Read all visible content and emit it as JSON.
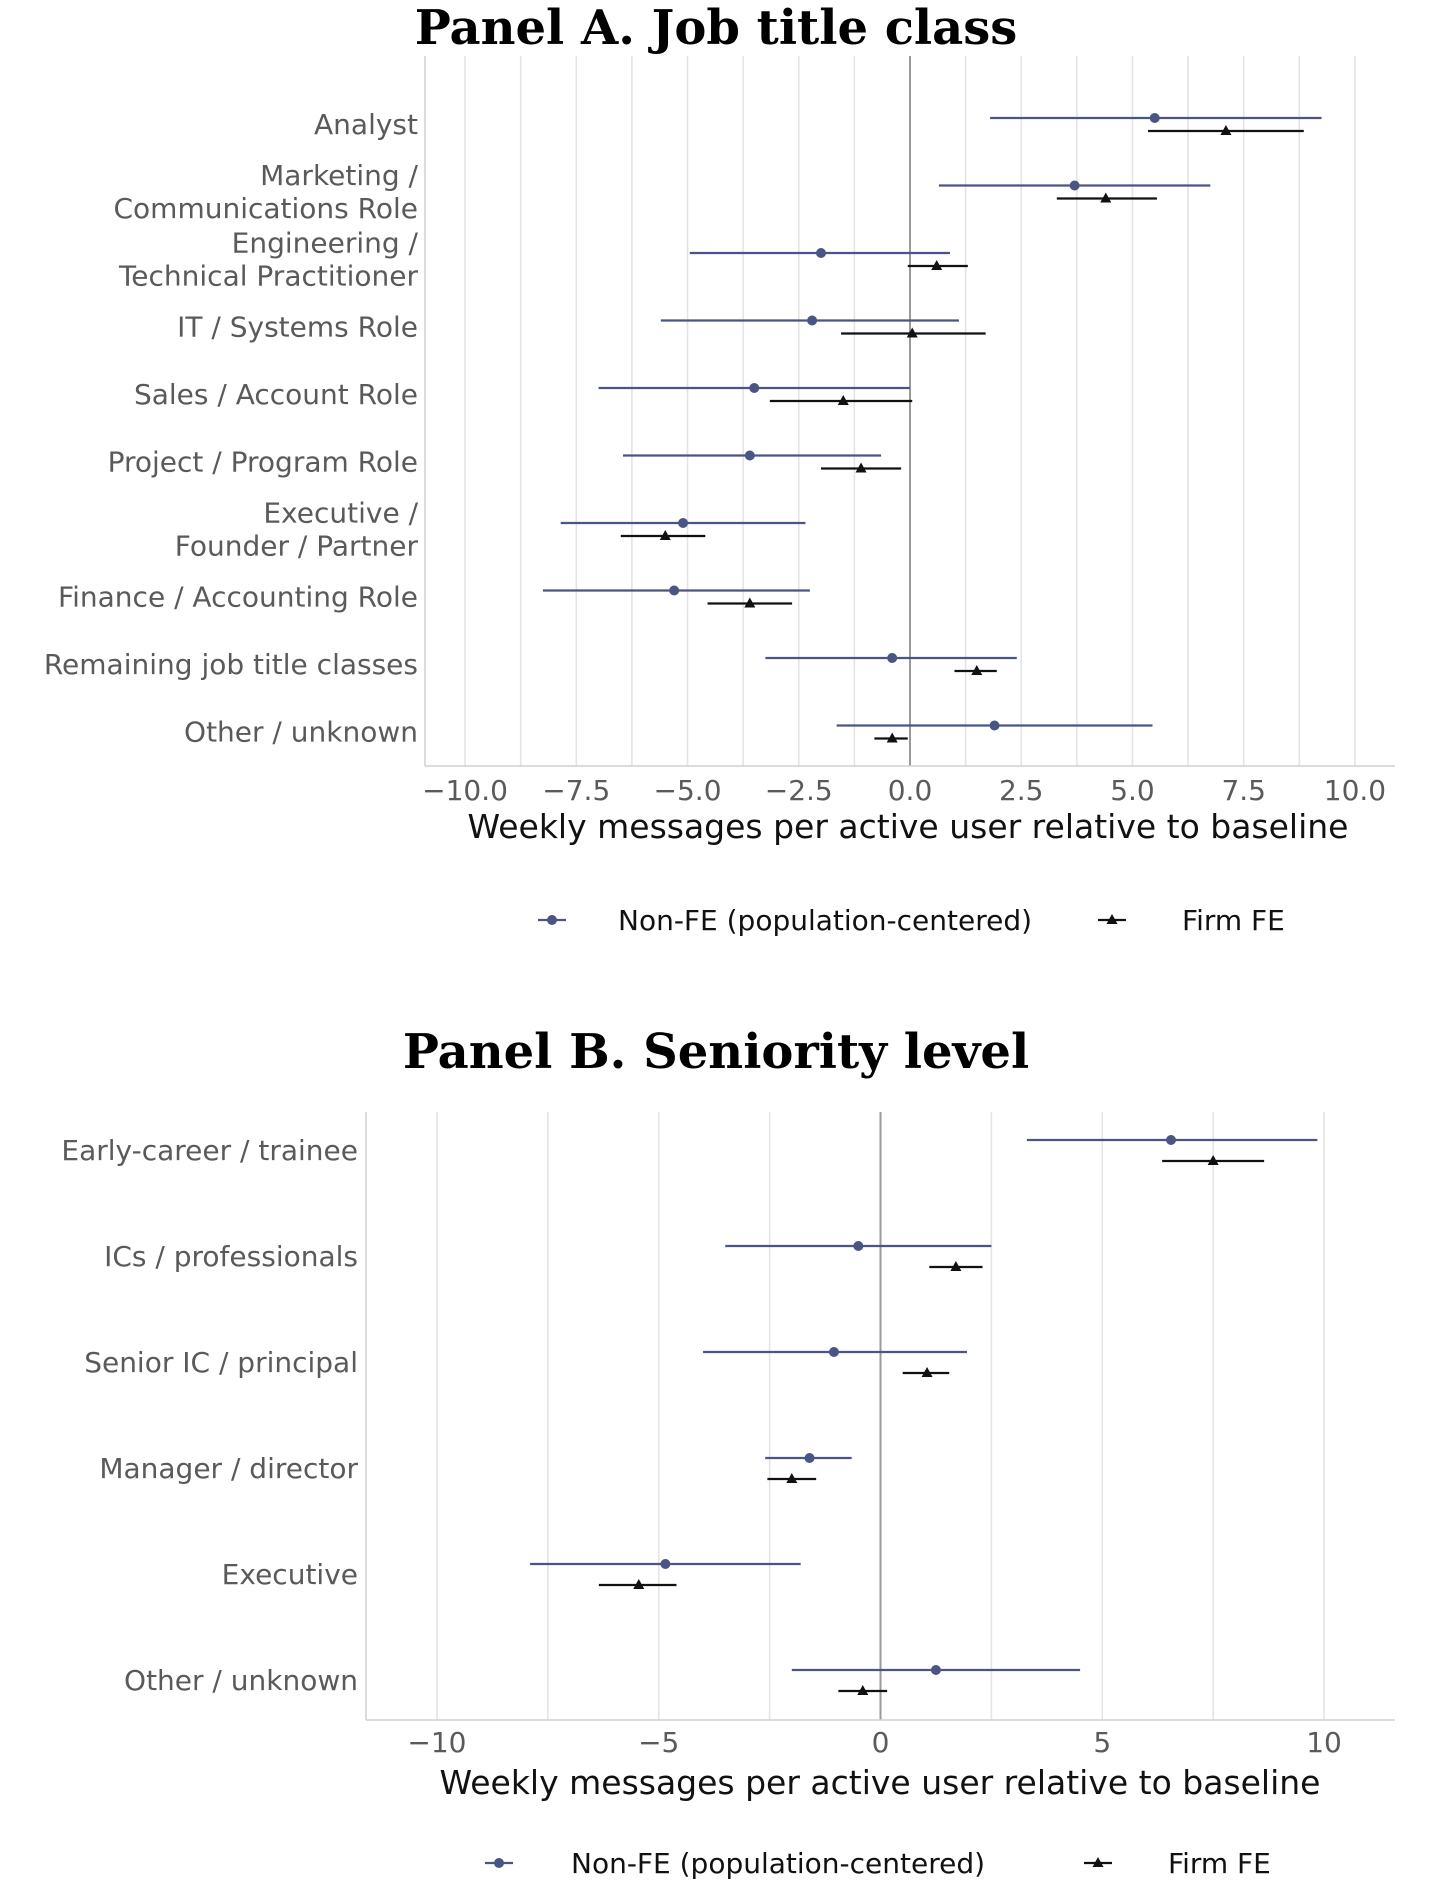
{
  "colors": {
    "non_fe": "#4a5585",
    "firm_fe": "#111111",
    "grid": "#e4e4e4",
    "zero": "#9a9a9a"
  },
  "chart_data": [
    {
      "type": "scatter",
      "title": "Panel A. Job title class",
      "xlabel": "Weekly messages per active user relative to baseline",
      "xlim": [
        -10.9,
        10.9
      ],
      "xticks": [
        -10,
        -7.5,
        -5,
        -2.5,
        0,
        2.5,
        5,
        7.5,
        10
      ],
      "xtick_labels": [
        "−10.0",
        "−7.5",
        "−5.0",
        "−2.5",
        "0.0",
        "2.5",
        "5.0",
        "7.5",
        "10.0"
      ],
      "grid": true,
      "legend_position": "bottom",
      "categories": [
        [
          "Analyst"
        ],
        [
          "Marketing /",
          "Communications Role"
        ],
        [
          "Engineering /",
          "Technical Practitioner"
        ],
        [
          "IT / Systems Role"
        ],
        [
          "Sales / Account Role"
        ],
        [
          "Project / Program Role"
        ],
        [
          "Executive /",
          "Founder / Partner"
        ],
        [
          "Finance / Accounting Role"
        ],
        [
          "Remaining job title classes"
        ],
        [
          "Other / unknown"
        ]
      ],
      "series": [
        {
          "name": "Non-FE (population-centered)",
          "marker": "circle",
          "values": [
            5.5,
            3.7,
            -2.0,
            -2.2,
            -3.5,
            -3.6,
            -5.1,
            -5.3,
            -0.4,
            1.9
          ],
          "lower": [
            1.8,
            0.65,
            -4.95,
            -5.6,
            -7.0,
            -6.45,
            -7.85,
            -8.25,
            -3.25,
            -1.65
          ],
          "upper": [
            9.25,
            6.75,
            0.9,
            1.1,
            0.0,
            -0.65,
            -2.35,
            -2.25,
            2.4,
            5.45
          ]
        },
        {
          "name": "Firm FE",
          "marker": "triangle",
          "values": [
            7.1,
            4.4,
            0.6,
            0.05,
            -1.5,
            -1.1,
            -5.5,
            -3.6,
            1.5,
            -0.4
          ],
          "lower": [
            5.35,
            3.3,
            -0.05,
            -1.55,
            -3.15,
            -2.0,
            -6.5,
            -4.55,
            1.0,
            -0.8
          ],
          "upper": [
            8.85,
            5.55,
            1.3,
            1.7,
            0.05,
            -0.2,
            -4.6,
            -2.65,
            1.95,
            -0.05
          ]
        }
      ]
    },
    {
      "type": "scatter",
      "title": "Panel B. Seniority level",
      "xlabel": "Weekly messages per active user relative to baseline",
      "xlim": [
        -11.6,
        11.6
      ],
      "xticks": [
        -10,
        -5,
        0,
        5,
        10
      ],
      "xtick_labels": [
        "−10",
        "−5",
        "0",
        "5",
        "10"
      ],
      "grid": true,
      "legend_position": "bottom",
      "categories": [
        [
          "Early-career / trainee"
        ],
        [
          "ICs / professionals"
        ],
        [
          "Senior IC / principal"
        ],
        [
          "Manager / director"
        ],
        [
          "Executive"
        ],
        [
          "Other / unknown"
        ]
      ],
      "series": [
        {
          "name": "Non-FE (population-centered)",
          "marker": "circle",
          "values": [
            6.55,
            -0.5,
            -1.05,
            -1.6,
            -4.85,
            1.25
          ],
          "lower": [
            3.3,
            -3.5,
            -4.0,
            -2.6,
            -7.9,
            -2.0
          ],
          "upper": [
            9.85,
            2.5,
            1.95,
            -0.65,
            -1.8,
            4.5
          ]
        },
        {
          "name": "Firm FE",
          "marker": "triangle",
          "values": [
            7.5,
            1.7,
            1.05,
            -2.0,
            -5.45,
            -0.4
          ],
          "lower": [
            6.35,
            1.1,
            0.5,
            -2.55,
            -6.35,
            -0.95
          ],
          "upper": [
            8.65,
            2.3,
            1.55,
            -1.45,
            -4.6,
            0.15
          ]
        }
      ]
    }
  ]
}
